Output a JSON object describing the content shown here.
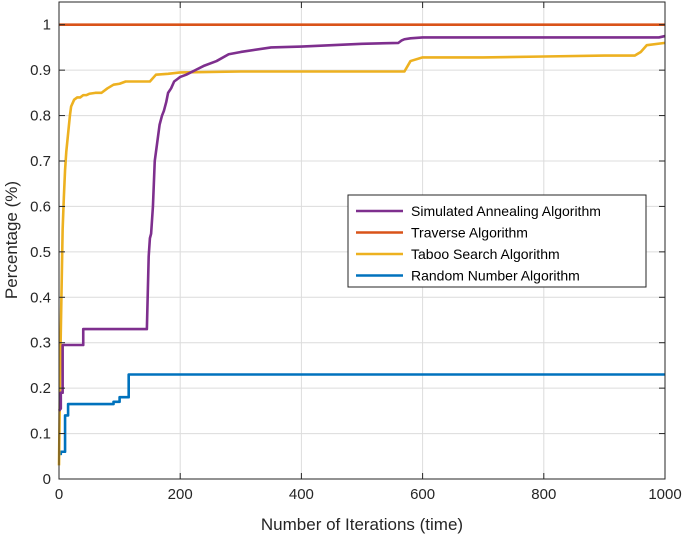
{
  "chart_data": {
    "type": "line",
    "title": "",
    "xlabel": "Number of Iterations (time)",
    "ylabel": "Percentage (%)",
    "xlim": [
      0,
      1000
    ],
    "ylim": [
      0,
      1.05
    ],
    "xticks": [
      0,
      200,
      400,
      600,
      800,
      1000
    ],
    "xtick_labels": [
      "0",
      "200",
      "400",
      "600",
      "800",
      "1000"
    ],
    "yticks": [
      0,
      0.1,
      0.2,
      0.3,
      0.4,
      0.5,
      0.6,
      0.7,
      0.8,
      0.9,
      1
    ],
    "ytick_labels": [
      "0",
      "0.1",
      "0.2",
      "0.3",
      "0.4",
      "0.5",
      "0.6",
      "0.7",
      "0.8",
      "0.9",
      "1"
    ],
    "grid": true,
    "legend_position": "center-right",
    "series": [
      {
        "name": "Simulated Annealing Algorithm",
        "color": "#7E2F8E",
        "x": [
          0,
          3,
          3,
          6,
          6,
          40,
          40,
          145,
          148,
          150,
          152,
          155,
          158,
          160,
          163,
          166,
          170,
          173,
          177,
          180,
          185,
          190,
          195,
          200,
          210,
          225,
          240,
          260,
          280,
          300,
          350,
          400,
          450,
          500,
          560,
          565,
          570,
          580,
          600,
          650,
          700,
          800,
          900,
          960,
          990,
          1000
        ],
        "y": [
          0.15,
          0.155,
          0.19,
          0.19,
          0.295,
          0.295,
          0.33,
          0.33,
          0.49,
          0.53,
          0.54,
          0.6,
          0.7,
          0.72,
          0.75,
          0.78,
          0.8,
          0.81,
          0.83,
          0.85,
          0.86,
          0.875,
          0.88,
          0.885,
          0.89,
          0.9,
          0.91,
          0.92,
          0.935,
          0.94,
          0.95,
          0.952,
          0.955,
          0.958,
          0.96,
          0.965,
          0.968,
          0.97,
          0.972,
          0.972,
          0.972,
          0.972,
          0.972,
          0.972,
          0.972,
          0.975
        ]
      },
      {
        "name": "Traverse Algorithm",
        "color": "#D95319",
        "x": [
          0,
          1000
        ],
        "y": [
          1.0,
          1.0
        ]
      },
      {
        "name": "Taboo Search Algorithm",
        "color": "#EDB120",
        "x": [
          0,
          2,
          4,
          6,
          8,
          10,
          12,
          15,
          18,
          20,
          25,
          30,
          35,
          40,
          45,
          50,
          60,
          70,
          80,
          90,
          100,
          110,
          120,
          150,
          160,
          180,
          200,
          300,
          400,
          500,
          570,
          580,
          600,
          700,
          800,
          900,
          950,
          960,
          970,
          1000
        ],
        "y": [
          0.03,
          0.25,
          0.4,
          0.55,
          0.62,
          0.68,
          0.72,
          0.76,
          0.8,
          0.82,
          0.835,
          0.84,
          0.84,
          0.845,
          0.845,
          0.848,
          0.85,
          0.85,
          0.86,
          0.868,
          0.87,
          0.875,
          0.875,
          0.875,
          0.89,
          0.892,
          0.895,
          0.897,
          0.897,
          0.897,
          0.897,
          0.92,
          0.928,
          0.928,
          0.93,
          0.932,
          0.932,
          0.94,
          0.955,
          0.96
        ]
      },
      {
        "name": "Random Number Algorithm",
        "color": "#0072BD",
        "x": [
          0,
          3,
          3,
          10,
          10,
          15,
          15,
          90,
          90,
          100,
          100,
          115,
          115,
          1000
        ],
        "y": [
          0.055,
          0.055,
          0.06,
          0.06,
          0.14,
          0.14,
          0.165,
          0.165,
          0.17,
          0.17,
          0.18,
          0.18,
          0.23,
          0.23
        ]
      }
    ]
  }
}
